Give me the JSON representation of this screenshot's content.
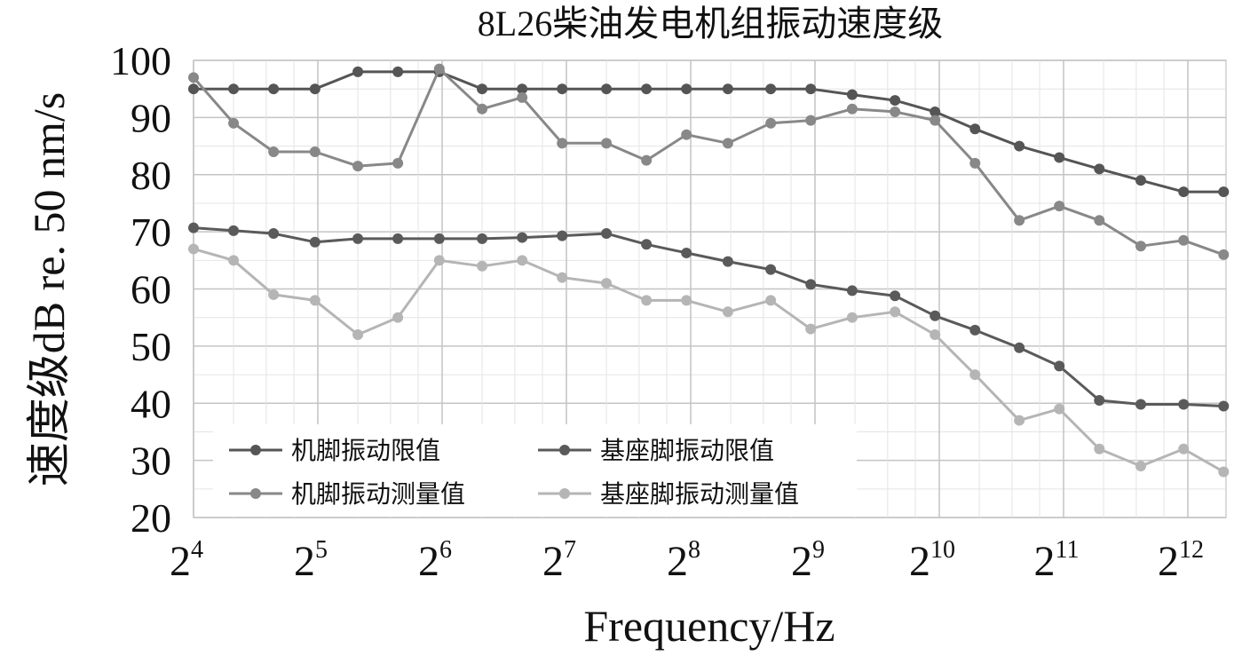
{
  "chart_data": {
    "type": "line",
    "title": "8L26柴油发电机组振动速度级",
    "xlabel": "Frequency/Hz",
    "ylabel": "速度级dB re. 50 nm/s",
    "x_scale": "log2",
    "x_ticks": [
      {
        "base": "2",
        "exp": "4",
        "value": 16
      },
      {
        "base": "2",
        "exp": "5",
        "value": 32
      },
      {
        "base": "2",
        "exp": "6",
        "value": 64
      },
      {
        "base": "2",
        "exp": "7",
        "value": 128
      },
      {
        "base": "2",
        "exp": "8",
        "value": 256
      },
      {
        "base": "2",
        "exp": "9",
        "value": 512
      },
      {
        "base": "2",
        "exp": "10",
        "value": 1024
      },
      {
        "base": "2",
        "exp": "11",
        "value": 2048
      },
      {
        "base": "2",
        "exp": "12",
        "value": 4096
      }
    ],
    "y_ticks": [
      "100",
      "90",
      "80",
      "70",
      "60",
      "50",
      "40",
      "30",
      "20"
    ],
    "ylim": [
      20,
      100
    ],
    "grid": true,
    "legend_position": "bottom-left",
    "x": [
      16,
      20,
      25,
      31.5,
      40,
      50,
      63,
      80,
      100,
      125,
      160,
      200,
      250,
      315,
      400,
      500,
      630,
      800,
      1000,
      1250,
      1600,
      2000,
      2500,
      3150,
      4000,
      5000
    ],
    "series": [
      {
        "name": "机脚振动限值",
        "color": "#555555",
        "values": [
          95,
          95,
          95,
          95,
          98,
          98,
          98,
          95,
          95,
          95,
          95,
          95,
          95,
          95,
          95,
          95,
          94,
          93,
          91,
          88,
          85,
          83,
          81,
          79,
          77,
          77
        ]
      },
      {
        "name": "基座脚振动限值",
        "color": "#5a5a5a",
        "values": [
          70.7,
          70.2,
          69.7,
          68.2,
          68.8,
          68.8,
          68.8,
          68.8,
          69,
          69.3,
          69.7,
          67.8,
          66.3,
          64.8,
          63.4,
          60.8,
          59.7,
          58.8,
          55.3,
          52.8,
          49.7,
          46.5,
          40.5,
          39.8,
          39.8,
          39.5
        ]
      },
      {
        "name": "机脚振动测量值",
        "color": "#888888",
        "values": [
          97,
          89,
          84,
          84,
          81.5,
          82,
          98.5,
          91.5,
          93.5,
          85.5,
          85.5,
          82.5,
          87,
          85.5,
          89,
          89.5,
          91.5,
          91,
          89.5,
          82,
          72,
          74.5,
          72,
          67.5,
          68.5,
          66
        ]
      },
      {
        "name": "基座脚振动测量值",
        "color": "#b5b5b5",
        "values": [
          67,
          65,
          59,
          58,
          52,
          55,
          65,
          64,
          65,
          62,
          61,
          58,
          58,
          56,
          58,
          53,
          55,
          56,
          52,
          45,
          37,
          39,
          32,
          29,
          32,
          28
        ]
      }
    ]
  }
}
